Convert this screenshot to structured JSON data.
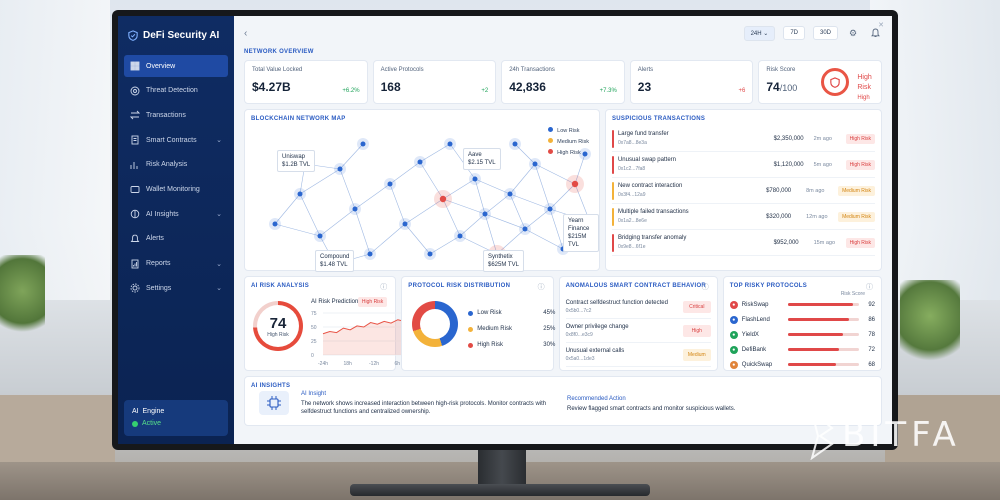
{
  "colors": {
    "primary": "#2a5bc2",
    "sidebar": "#0f2c63",
    "high_risk": "#e04848",
    "medium_risk": "#f3b23a",
    "low_risk": "#2a66cf",
    "success": "#1fa35a"
  },
  "brand": {
    "name": "DeFi Security AI",
    "icon": "shield-icon"
  },
  "sidebar": {
    "items": [
      {
        "label": "Overview",
        "icon": "grid-icon",
        "active": true
      },
      {
        "label": "Threat Detection",
        "icon": "radar-icon"
      },
      {
        "label": "Transactions",
        "icon": "swap-icon"
      },
      {
        "label": "Smart Contracts",
        "icon": "contract-icon",
        "expandable": true
      },
      {
        "label": "Risk Analysis",
        "icon": "chart-icon"
      },
      {
        "label": "Wallet Monitoring",
        "icon": "wallet-icon"
      },
      {
        "label": "AI Insights",
        "icon": "brain-icon",
        "expandable": true
      },
      {
        "label": "Alerts",
        "icon": "bell-icon"
      },
      {
        "label": "Reports",
        "icon": "report-icon",
        "expandable": true
      },
      {
        "label": "Settings",
        "icon": "gear-icon",
        "expandable": true
      }
    ],
    "engine": {
      "label": "AI",
      "title": "Engine",
      "status": "Active"
    }
  },
  "topbar": {
    "ranges": [
      "24H",
      "7D",
      "30D"
    ],
    "selected": "24H"
  },
  "overview": {
    "title": "NETWORK OVERVIEW",
    "stats": [
      {
        "label": "Total Value Locked",
        "value": "$4.27B",
        "change": "+6.2%"
      },
      {
        "label": "Active Protocols",
        "value": "168",
        "change": "+2"
      },
      {
        "label": "24h Transactions",
        "value": "42,836",
        "change": "+7.3%"
      },
      {
        "label": "Alerts",
        "value": "23",
        "change": "+6"
      }
    ],
    "risk": {
      "label": "Risk Score",
      "value": "74",
      "max": "/100",
      "status": "High Risk",
      "sub": "High"
    }
  },
  "map": {
    "title": "BLOCKCHAIN NETWORK MAP",
    "legend": [
      "Low Risk",
      "Medium Risk",
      "High Risk"
    ],
    "labels": [
      {
        "name": "Uniswap",
        "tvl": "$1.2B TVL"
      },
      {
        "name": "Aave",
        "tvl": "$2.15 TVL"
      },
      {
        "name": "Compound",
        "tvl": "$1.48 TVL"
      },
      {
        "name": "Synthetix",
        "tvl": "$625M TVL"
      },
      {
        "name": "Yearn Finance",
        "tvl": "$215M TVL"
      }
    ]
  },
  "suspicious": {
    "title": "SUSPICIOUS TRANSACTIONS",
    "rows": [
      {
        "name": "Large fund transfer",
        "hash": "0x7a8...8e3a",
        "amount": "$2,350,000",
        "time": "2m ago",
        "risk": "High Risk",
        "level": "high"
      },
      {
        "name": "Unusual swap pattern",
        "hash": "0x1c2...7fa8",
        "amount": "$1,120,000",
        "time": "5m ago",
        "risk": "High Risk",
        "level": "high"
      },
      {
        "name": "New contract interaction",
        "hash": "0x3f4...12a9",
        "amount": "$780,000",
        "time": "8m ago",
        "risk": "Medium Risk",
        "level": "med"
      },
      {
        "name": "Multiple failed transactions",
        "hash": "0x1a2...8e6e",
        "amount": "$320,000",
        "time": "12m ago",
        "risk": "Medium Risk",
        "level": "med"
      },
      {
        "name": "Bridging transfer anomaly",
        "hash": "0x9e8...6f1e",
        "amount": "$952,000",
        "time": "15m ago",
        "risk": "High Risk",
        "level": "high"
      }
    ]
  },
  "ai_risk": {
    "title": "AI RISK ANALYSIS",
    "score": "74",
    "score_label": "High Risk",
    "prediction_title": "AI Risk Prediction",
    "badge": "High Risk",
    "y_ticks": [
      "75",
      "50",
      "25",
      "0"
    ],
    "x_ticks": [
      "-24h",
      "18h",
      "-12h",
      "6h",
      "Now"
    ],
    "trend": [
      38,
      42,
      40,
      48,
      45,
      52,
      50,
      58,
      55,
      60,
      57,
      63,
      60,
      65,
      62,
      66
    ]
  },
  "distribution": {
    "title": "PROTOCOL RISK DISTRIBUTION",
    "items": [
      {
        "label": "Low Risk",
        "pct": "45%"
      },
      {
        "label": "Medium Risk",
        "pct": "25%"
      },
      {
        "label": "High Risk",
        "pct": "30%"
      }
    ]
  },
  "anomalous": {
    "title": "ANOMALOUS SMART CONTRACT BEHAVIOR",
    "rows": [
      {
        "name": "Contract selfdestruct function detected",
        "hash": "0x5b0...7c2",
        "level": "Critical"
      },
      {
        "name": "Owner privilege change",
        "hash": "0x8f0...e3c9",
        "level": "High"
      },
      {
        "name": "Unusual external calls",
        "hash": "0x5a0...1de3",
        "level": "Medium"
      }
    ]
  },
  "top_risky": {
    "title": "TOP RISKY PROTOCOLS",
    "col": "Risk Score",
    "rows": [
      {
        "name": "RiskSwap",
        "score": "92"
      },
      {
        "name": "FlashLend",
        "score": "86"
      },
      {
        "name": "YieldX",
        "score": "78"
      },
      {
        "name": "DefiBank",
        "score": "72"
      },
      {
        "name": "QuickSwap",
        "score": "68"
      }
    ]
  },
  "insights": {
    "title": "AI INSIGHTS",
    "insight_title": "AI Insight",
    "insight_text": "The network shows increased interaction between high-risk protocols. Monitor contracts with selfdestruct functions and centralized ownership.",
    "rec_title": "Recommended Action",
    "rec_text": "Review flagged smart contracts and monitor suspicious wallets."
  },
  "watermark": "BITFA"
}
